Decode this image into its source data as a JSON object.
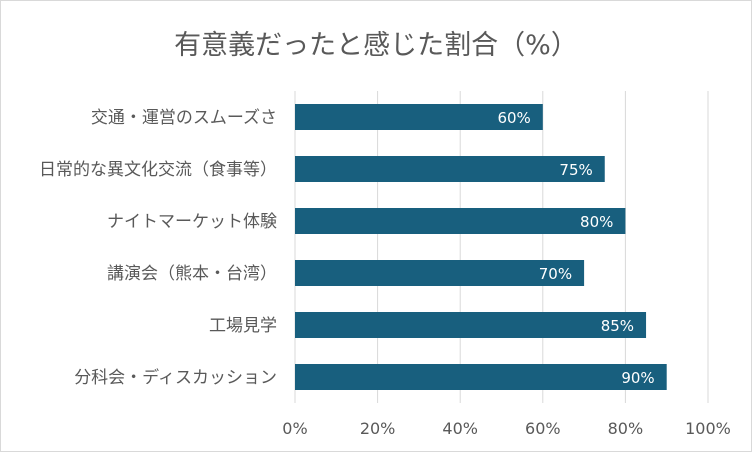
{
  "chart_data": {
    "type": "bar",
    "orientation": "horizontal",
    "title": "有意義だったと感じた割合（%）",
    "categories": [
      "交通・運営のスムーズさ",
      "日常的な異文化交流（食事等）",
      "ナイトマーケット体験",
      "講演会（熊本・台湾）",
      "工場見学",
      "分科会・ディスカッション"
    ],
    "values": [
      60,
      75,
      80,
      70,
      85,
      90
    ],
    "data_labels": [
      "60%",
      "75%",
      "80%",
      "70%",
      "85%",
      "90%"
    ],
    "x_ticks": [
      "0%",
      "20%",
      "40%",
      "60%",
      "80%",
      "100%"
    ],
    "xlim": [
      0,
      100
    ],
    "xlabel": "",
    "ylabel": "",
    "grid": true,
    "legend": "none",
    "bar_color": "#185F7E",
    "grid_color": "#d9d9d9"
  }
}
